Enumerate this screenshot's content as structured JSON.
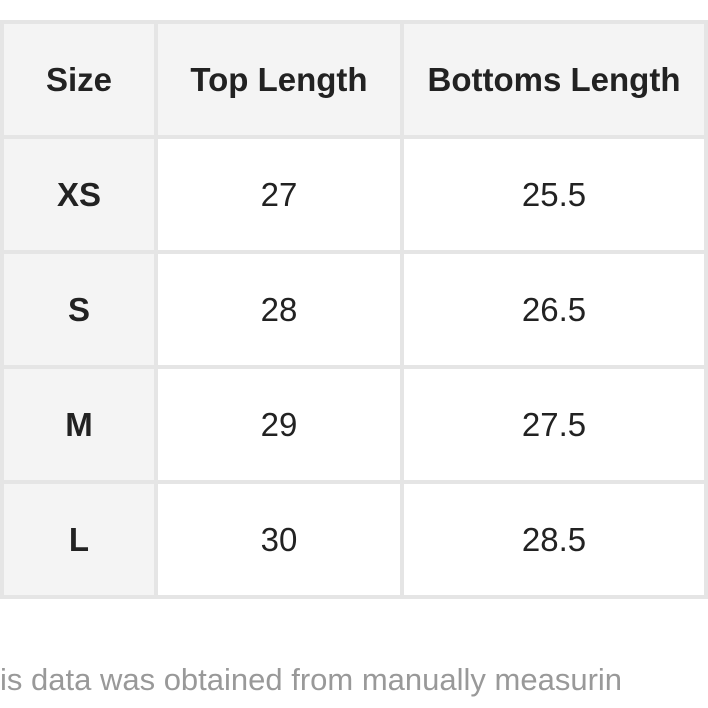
{
  "table": {
    "headers": [
      "Size",
      "Top Length",
      "Bottoms Length"
    ],
    "rows": [
      {
        "size": "XS",
        "top": "27",
        "bottoms": "25.5"
      },
      {
        "size": "S",
        "top": "28",
        "bottoms": "26.5"
      },
      {
        "size": "M",
        "top": "29",
        "bottoms": "27.5"
      },
      {
        "size": "L",
        "top": "30",
        "bottoms": "28.5"
      }
    ]
  },
  "note": "is data was obtained from manually measurin",
  "colors": {
    "header_bg": "#f4f4f4",
    "border": "#e5e5e5",
    "note_text": "#999999"
  }
}
